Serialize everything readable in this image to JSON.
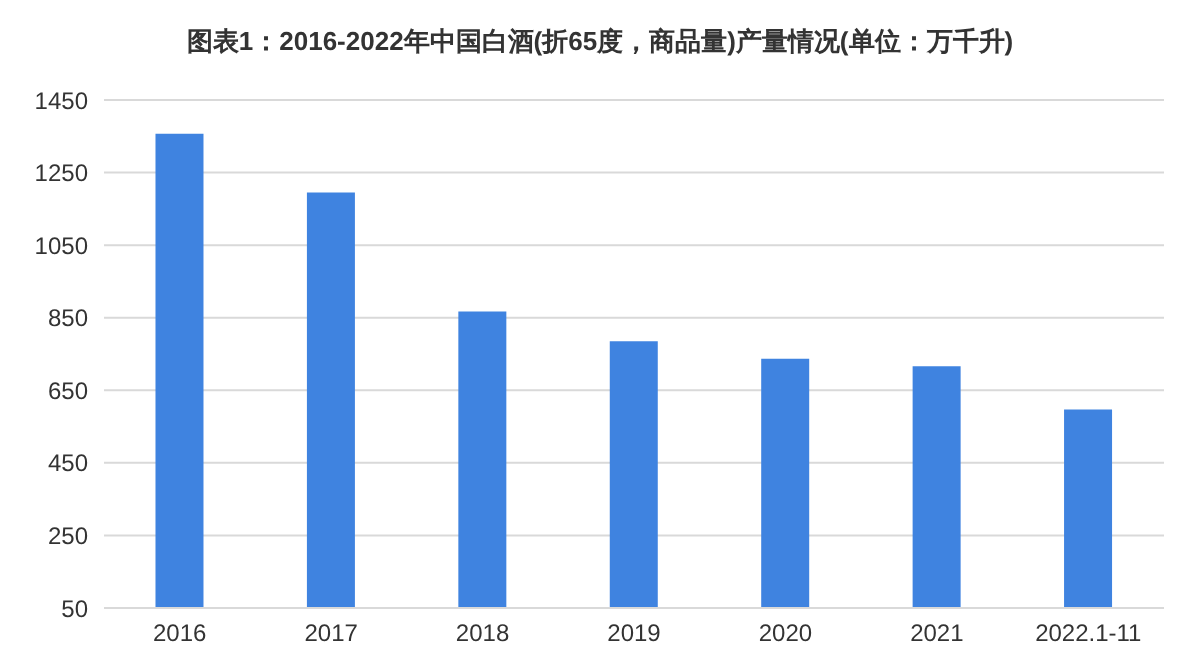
{
  "chart_data": {
    "type": "bar",
    "title": "图表1：2016-2022年中国白酒(折65度，商品量)产量情况(单位：万千升)",
    "categories": [
      "2016",
      "2017",
      "2018",
      "2019",
      "2020",
      "2021",
      "2022.1-11"
    ],
    "values": [
      1357,
      1195,
      867,
      785,
      737,
      716,
      597
    ],
    "color": "#3f83e0",
    "ylim": [
      50,
      1450
    ],
    "yticks": [
      50,
      250,
      450,
      650,
      850,
      1050,
      1250,
      1450
    ],
    "grid": "y"
  }
}
